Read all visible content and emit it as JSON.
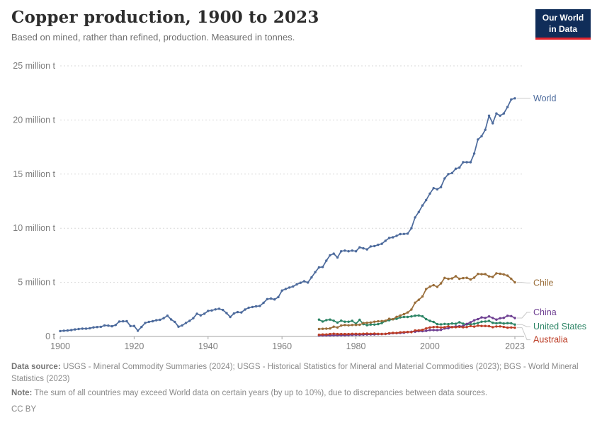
{
  "header": {
    "title": "Copper production, 1900 to 2023",
    "subtitle": "Based on mined, rather than refined, production. Measured in tonnes.",
    "logo": {
      "line1": "Our World",
      "line2": "in Data",
      "bg_color": "#102d59",
      "accent_color": "#e0232c"
    }
  },
  "chart_data": {
    "type": "line",
    "title": "Copper production, 1900 to 2023",
    "xlabel": "",
    "ylabel": "",
    "unit": "million tonnes",
    "xlim": [
      1900,
      2023
    ],
    "ylim": [
      0,
      25
    ],
    "grid": true,
    "legend_position": "right-end-labels",
    "x_ticks": [
      1900,
      1920,
      1940,
      1960,
      1980,
      2000,
      2023
    ],
    "y_ticks": [
      {
        "value": 0,
        "label": "0 t"
      },
      {
        "value": 5,
        "label": "5 million t"
      },
      {
        "value": 10,
        "label": "10 million t"
      },
      {
        "value": 15,
        "label": "15 million t"
      },
      {
        "value": 20,
        "label": "20 million t"
      },
      {
        "value": 25,
        "label": "25 million t"
      }
    ],
    "colors": {
      "grid": "#d9d9d9",
      "axis": "#a3a3a3",
      "tick_label": "#7d7d7d",
      "connector": "#c9c9c9"
    },
    "series": [
      {
        "name": "United States",
        "color": "#2C8465",
        "start_year": 1970,
        "label_dy": 3,
        "values": [
          1.56,
          1.38,
          1.51,
          1.56,
          1.45,
          1.28,
          1.46,
          1.36,
          1.36,
          1.44,
          1.18,
          1.54,
          1.14,
          1.04,
          1.1,
          1.1,
          1.14,
          1.24,
          1.42,
          1.5,
          1.59,
          1.63,
          1.76,
          1.8,
          1.8,
          1.85,
          1.92,
          1.94,
          1.86,
          1.6,
          1.44,
          1.34,
          1.14,
          1.12,
          1.16,
          1.14,
          1.2,
          1.17,
          1.31,
          1.18,
          1.11,
          1.11,
          1.17,
          1.25,
          1.36,
          1.38,
          1.43,
          1.26,
          1.22,
          1.26,
          1.2,
          1.23,
          1.22,
          1.1
        ]
      },
      {
        "name": "China",
        "color": "#6D3E91",
        "start_year": 1970,
        "label_dy": -8,
        "values": [
          0.09,
          0.1,
          0.1,
          0.1,
          0.11,
          0.11,
          0.12,
          0.12,
          0.13,
          0.15,
          0.16,
          0.16,
          0.17,
          0.18,
          0.19,
          0.19,
          0.21,
          0.22,
          0.23,
          0.26,
          0.3,
          0.3,
          0.33,
          0.35,
          0.4,
          0.44,
          0.44,
          0.49,
          0.49,
          0.52,
          0.59,
          0.59,
          0.58,
          0.61,
          0.74,
          0.76,
          0.87,
          0.93,
          0.95,
          0.96,
          1.16,
          1.31,
          1.49,
          1.6,
          1.76,
          1.71,
          1.85,
          1.71,
          1.56,
          1.68,
          1.72,
          1.91,
          1.88,
          1.7
        ]
      },
      {
        "name": "Australia",
        "color": "#BC3D26",
        "start_year": 1970,
        "label_dy": 17,
        "values": [
          0.16,
          0.18,
          0.18,
          0.22,
          0.25,
          0.22,
          0.22,
          0.22,
          0.22,
          0.24,
          0.24,
          0.23,
          0.25,
          0.26,
          0.24,
          0.26,
          0.24,
          0.23,
          0.24,
          0.3,
          0.33,
          0.32,
          0.38,
          0.4,
          0.42,
          0.4,
          0.55,
          0.56,
          0.61,
          0.74,
          0.83,
          0.87,
          0.88,
          0.83,
          0.85,
          0.93,
          0.86,
          0.86,
          0.89,
          0.85,
          0.87,
          0.96,
          0.91,
          1.0,
          0.97,
          0.97,
          0.95,
          0.86,
          0.92,
          0.93,
          0.88,
          0.81,
          0.83,
          0.81
        ]
      },
      {
        "name": "Chile",
        "color": "#996D39",
        "start_year": 1970,
        "label_dy": 1,
        "values": [
          0.69,
          0.71,
          0.72,
          0.74,
          0.9,
          0.83,
          1.01,
          1.06,
          1.03,
          1.06,
          1.07,
          1.08,
          1.24,
          1.26,
          1.29,
          1.36,
          1.4,
          1.42,
          1.45,
          1.63,
          1.59,
          1.81,
          1.93,
          2.06,
          2.22,
          2.49,
          3.12,
          3.39,
          3.69,
          4.38,
          4.6,
          4.74,
          4.58,
          4.9,
          5.41,
          5.32,
          5.36,
          5.56,
          5.33,
          5.39,
          5.42,
          5.26,
          5.43,
          5.78,
          5.75,
          5.76,
          5.55,
          5.5,
          5.83,
          5.79,
          5.73,
          5.62,
          5.33,
          5.0
        ]
      },
      {
        "name": "World",
        "color": "#4C6A9C",
        "start_year": 1900,
        "label_dy": 0,
        "values": [
          0.5,
          0.53,
          0.55,
          0.59,
          0.65,
          0.69,
          0.72,
          0.72,
          0.76,
          0.84,
          0.87,
          0.89,
          1.02,
          1.0,
          0.94,
          1.06,
          1.38,
          1.4,
          1.41,
          0.96,
          0.97,
          0.53,
          0.88,
          1.25,
          1.35,
          1.41,
          1.5,
          1.54,
          1.69,
          1.92,
          1.57,
          1.35,
          0.9,
          1.02,
          1.25,
          1.44,
          1.69,
          2.1,
          1.95,
          2.1,
          2.36,
          2.4,
          2.5,
          2.56,
          2.45,
          2.16,
          1.8,
          2.12,
          2.25,
          2.22,
          2.49,
          2.66,
          2.72,
          2.78,
          2.82,
          3.11,
          3.45,
          3.5,
          3.42,
          3.64,
          4.24,
          4.39,
          4.52,
          4.62,
          4.81,
          4.96,
          5.1,
          4.98,
          5.46,
          5.94,
          6.38,
          6.42,
          7.0,
          7.5,
          7.65,
          7.3,
          7.87,
          7.93,
          7.87,
          7.93,
          7.87,
          8.23,
          8.14,
          8.04,
          8.32,
          8.35,
          8.47,
          8.56,
          8.84,
          9.1,
          9.16,
          9.3,
          9.46,
          9.47,
          9.5,
          10.0,
          11.0,
          11.5,
          12.1,
          12.6,
          13.2,
          13.7,
          13.6,
          13.8,
          14.6,
          15.0,
          15.1,
          15.5,
          15.6,
          16.1,
          16.1,
          16.1,
          16.9,
          18.2,
          18.5,
          19.1,
          20.4,
          19.7,
          20.6,
          20.4,
          20.6,
          21.2,
          21.9,
          22.0
        ]
      }
    ]
  },
  "footer": {
    "datasource_label": "Data source:",
    "datasource_text": "USGS - Mineral Commodity Summaries (2024); USGS - Historical Statistics for Mineral and Material Commodities (2023); BGS - World Mineral Statistics (2023)",
    "note_label": "Note:",
    "note_text": "The sum of all countries may exceed World data on certain years (by up to 10%), due to discrepancies between data sources.",
    "license": "CC BY"
  }
}
